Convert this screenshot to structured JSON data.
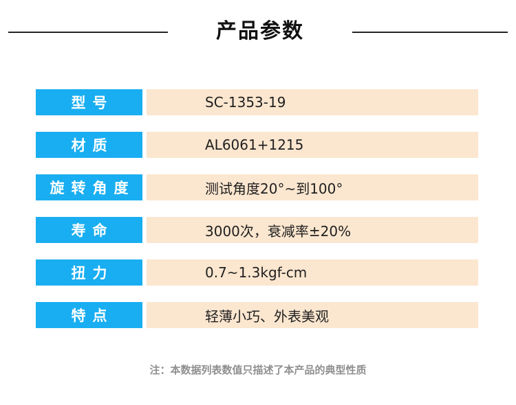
{
  "header": {
    "title": "产品参数"
  },
  "specs": [
    {
      "label": "型号",
      "value": "SC-1353-19"
    },
    {
      "label": "材质",
      "value": "AL6061+1215"
    },
    {
      "label": "旋转角度",
      "value": "测试角度20°~到100°"
    },
    {
      "label": "寿命",
      "value": "3000次，衰减率±20%"
    },
    {
      "label": "扭力",
      "value": "0.7~1.3kgf-cm"
    },
    {
      "label": "特点",
      "value": "轻薄小巧、外表美观"
    }
  ],
  "footer": {
    "note": "注：本数据列表数值只描述了本产品的典型性质"
  },
  "colors": {
    "label_bg": "#19aef1",
    "value_bg": "#fbe6cf",
    "title": "#111111",
    "note": "#8f8f8f"
  }
}
